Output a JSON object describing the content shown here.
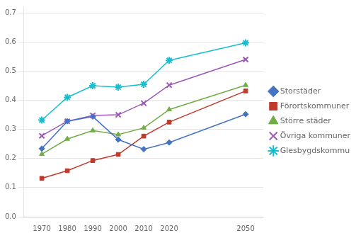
{
  "chart_data": {
    "type": "line",
    "x": [
      1970,
      1980,
      1990,
      2000,
      2010,
      2020,
      2050
    ],
    "series": [
      {
        "name": "Storstäder",
        "color": "#4472C4",
        "marker": "diamond",
        "values": [
          0.234,
          0.328,
          0.344,
          0.265,
          0.232,
          0.255,
          0.352
        ]
      },
      {
        "name": "Förortskommuner",
        "color": "#C0392B",
        "marker": "square",
        "values": [
          0.132,
          0.158,
          0.193,
          0.214,
          0.277,
          0.325,
          0.432
        ]
      },
      {
        "name": "Större städer",
        "color": "#70AD47",
        "marker": "triangle",
        "values": [
          0.215,
          0.267,
          0.296,
          0.282,
          0.305,
          0.368,
          0.452
        ]
      },
      {
        "name": "Övriga kommuner",
        "color": "#9B59B6",
        "marker": "x",
        "values": [
          0.278,
          0.328,
          0.348,
          0.35,
          0.39,
          0.452,
          0.54
        ]
      },
      {
        "name": "Glesbygdskommuner",
        "color": "#17BECF",
        "marker": "star",
        "values": [
          0.332,
          0.41,
          0.45,
          0.445,
          0.455,
          0.537,
          0.597
        ]
      }
    ],
    "xlim": [
      1963,
      2057
    ],
    "ylim": [
      0.0,
      0.72
    ],
    "xticks": [
      1970,
      1980,
      1990,
      2000,
      2010,
      2020,
      2050
    ],
    "yticks": [
      {
        "value": 0.0,
        "label": "0.0"
      },
      0.1,
      0.2,
      0.3,
      0.4,
      0.5,
      0.6,
      0.7
    ],
    "grid": "y",
    "legend": "right"
  }
}
